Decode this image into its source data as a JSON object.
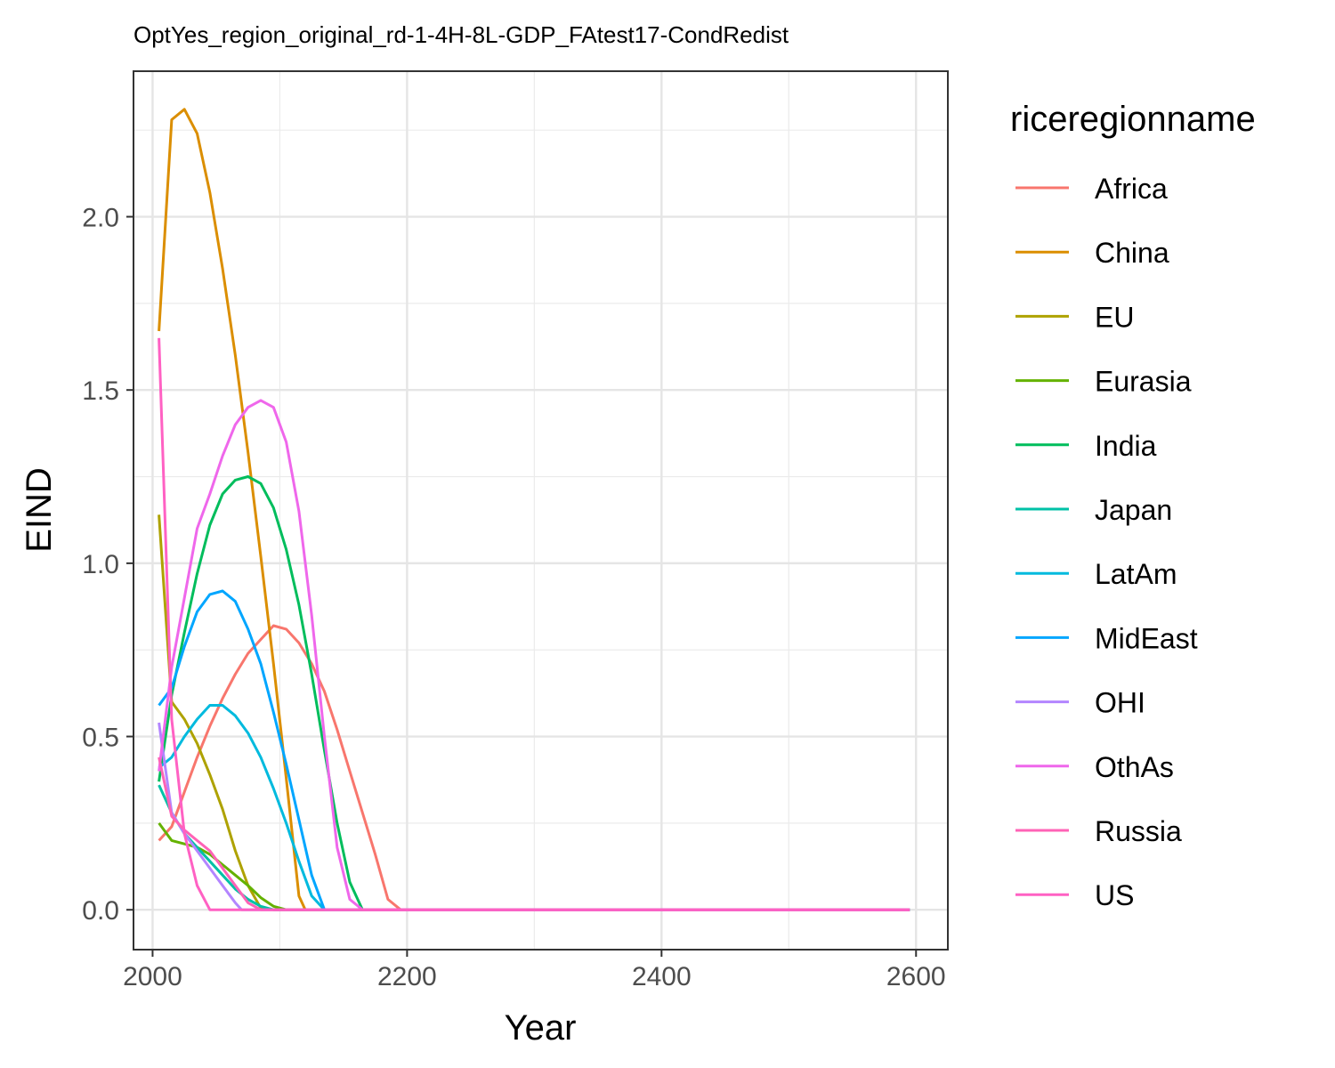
{
  "chart_data": {
    "type": "line",
    "title": "OptYes_region_original_rd-1-4H-8L-GDP_FAtest17-CondRedist",
    "xlabel": "Year",
    "ylabel": "EIND",
    "xlim": [
      1985,
      2625
    ],
    "ylim": [
      -0.115,
      2.42
    ],
    "x_ticks": [
      2000,
      2200,
      2400,
      2600
    ],
    "x_tick_labels": [
      "2000",
      "2200",
      "2400",
      "2600"
    ],
    "y_ticks": [
      0,
      0.5,
      1.0,
      1.5,
      2.0
    ],
    "y_tick_labels": [
      "0.0",
      "0.5",
      "1.0",
      "1.5",
      "2.0"
    ],
    "grid": true,
    "legend_title": "riceregionname",
    "legend_position": "right",
    "series": [
      {
        "name": "Africa",
        "color": "#F8766D",
        "points": [
          [
            2005,
            0.2
          ],
          [
            2015,
            0.24
          ],
          [
            2025,
            0.34
          ],
          [
            2035,
            0.44
          ],
          [
            2045,
            0.53
          ],
          [
            2055,
            0.61
          ],
          [
            2065,
            0.68
          ],
          [
            2075,
            0.74
          ],
          [
            2085,
            0.78
          ],
          [
            2095,
            0.82
          ],
          [
            2105,
            0.81
          ],
          [
            2115,
            0.77
          ],
          [
            2125,
            0.71
          ],
          [
            2135,
            0.63
          ],
          [
            2145,
            0.52
          ],
          [
            2155,
            0.4
          ],
          [
            2165,
            0.28
          ],
          [
            2175,
            0.16
          ],
          [
            2185,
            0.03
          ],
          [
            2195,
            0.0
          ],
          [
            2595,
            0.0
          ]
        ]
      },
      {
        "name": "China",
        "color": "#DB8E00",
        "points": [
          [
            2005,
            1.67
          ],
          [
            2015,
            2.28
          ],
          [
            2025,
            2.31
          ],
          [
            2035,
            2.24
          ],
          [
            2045,
            2.07
          ],
          [
            2055,
            1.85
          ],
          [
            2065,
            1.6
          ],
          [
            2075,
            1.32
          ],
          [
            2085,
            1.02
          ],
          [
            2095,
            0.71
          ],
          [
            2105,
            0.38
          ],
          [
            2115,
            0.04
          ],
          [
            2120,
            0.0
          ],
          [
            2595,
            0.0
          ]
        ]
      },
      {
        "name": "EU",
        "color": "#AEA200",
        "points": [
          [
            2005,
            1.14
          ],
          [
            2015,
            0.6
          ],
          [
            2025,
            0.55
          ],
          [
            2035,
            0.48
          ],
          [
            2045,
            0.39
          ],
          [
            2055,
            0.29
          ],
          [
            2065,
            0.17
          ],
          [
            2075,
            0.07
          ],
          [
            2085,
            0.005
          ],
          [
            2095,
            0.0
          ],
          [
            2595,
            0.0
          ]
        ]
      },
      {
        "name": "Eurasia",
        "color": "#64B200",
        "points": [
          [
            2005,
            0.25
          ],
          [
            2015,
            0.2
          ],
          [
            2025,
            0.19
          ],
          [
            2035,
            0.18
          ],
          [
            2045,
            0.16
          ],
          [
            2055,
            0.13
          ],
          [
            2065,
            0.1
          ],
          [
            2075,
            0.07
          ],
          [
            2085,
            0.035
          ],
          [
            2095,
            0.01
          ],
          [
            2105,
            0.0
          ],
          [
            2595,
            0.0
          ]
        ]
      },
      {
        "name": "India",
        "color": "#00BD5C",
        "points": [
          [
            2005,
            0.37
          ],
          [
            2015,
            0.62
          ],
          [
            2025,
            0.8
          ],
          [
            2035,
            0.97
          ],
          [
            2045,
            1.11
          ],
          [
            2055,
            1.2
          ],
          [
            2065,
            1.24
          ],
          [
            2075,
            1.25
          ],
          [
            2085,
            1.23
          ],
          [
            2095,
            1.16
          ],
          [
            2105,
            1.04
          ],
          [
            2115,
            0.88
          ],
          [
            2125,
            0.68
          ],
          [
            2135,
            0.46
          ],
          [
            2145,
            0.25
          ],
          [
            2155,
            0.08
          ],
          [
            2165,
            0.0
          ],
          [
            2595,
            0.0
          ]
        ]
      },
      {
        "name": "Japan",
        "color": "#00C1A7",
        "points": [
          [
            2005,
            0.36
          ],
          [
            2015,
            0.28
          ],
          [
            2025,
            0.22
          ],
          [
            2035,
            0.18
          ],
          [
            2045,
            0.14
          ],
          [
            2055,
            0.1
          ],
          [
            2065,
            0.06
          ],
          [
            2075,
            0.03
          ],
          [
            2085,
            0.01
          ],
          [
            2095,
            0.0
          ],
          [
            2595,
            0.0
          ]
        ]
      },
      {
        "name": "LatAm",
        "color": "#00BADE",
        "points": [
          [
            2005,
            0.41
          ],
          [
            2015,
            0.44
          ],
          [
            2025,
            0.5
          ],
          [
            2035,
            0.55
          ],
          [
            2045,
            0.59
          ],
          [
            2055,
            0.59
          ],
          [
            2065,
            0.56
          ],
          [
            2075,
            0.51
          ],
          [
            2085,
            0.44
          ],
          [
            2095,
            0.35
          ],
          [
            2105,
            0.25
          ],
          [
            2115,
            0.14
          ],
          [
            2125,
            0.04
          ],
          [
            2135,
            0.0
          ],
          [
            2595,
            0.0
          ]
        ]
      },
      {
        "name": "MidEast",
        "color": "#00A6FF",
        "points": [
          [
            2005,
            0.59
          ],
          [
            2015,
            0.64
          ],
          [
            2025,
            0.76
          ],
          [
            2035,
            0.86
          ],
          [
            2045,
            0.91
          ],
          [
            2055,
            0.92
          ],
          [
            2065,
            0.89
          ],
          [
            2075,
            0.81
          ],
          [
            2085,
            0.71
          ],
          [
            2095,
            0.57
          ],
          [
            2105,
            0.42
          ],
          [
            2115,
            0.26
          ],
          [
            2125,
            0.1
          ],
          [
            2135,
            0.0
          ],
          [
            2595,
            0.0
          ]
        ]
      },
      {
        "name": "OHI",
        "color": "#B385FF",
        "points": [
          [
            2005,
            0.54
          ],
          [
            2015,
            0.28
          ],
          [
            2025,
            0.22
          ],
          [
            2035,
            0.17
          ],
          [
            2045,
            0.12
          ],
          [
            2055,
            0.07
          ],
          [
            2065,
            0.02
          ],
          [
            2070,
            0.0
          ],
          [
            2595,
            0.0
          ]
        ]
      },
      {
        "name": "OthAs",
        "color": "#EF67EB",
        "points": [
          [
            2005,
            0.4
          ],
          [
            2015,
            0.7
          ],
          [
            2025,
            0.9
          ],
          [
            2035,
            1.1
          ],
          [
            2045,
            1.2
          ],
          [
            2055,
            1.31
          ],
          [
            2065,
            1.4
          ],
          [
            2075,
            1.45
          ],
          [
            2085,
            1.47
          ],
          [
            2095,
            1.45
          ],
          [
            2105,
            1.35
          ],
          [
            2115,
            1.15
          ],
          [
            2125,
            0.85
          ],
          [
            2135,
            0.5
          ],
          [
            2145,
            0.18
          ],
          [
            2155,
            0.03
          ],
          [
            2165,
            0.0
          ],
          [
            2595,
            0.0
          ]
        ]
      },
      {
        "name": "Russia",
        "color": "#FF63B6",
        "points": [
          [
            2005,
            0.44
          ],
          [
            2015,
            0.27
          ],
          [
            2025,
            0.23
          ],
          [
            2035,
            0.2
          ],
          [
            2045,
            0.17
          ],
          [
            2055,
            0.12
          ],
          [
            2065,
            0.07
          ],
          [
            2075,
            0.02
          ],
          [
            2085,
            0.0
          ],
          [
            2595,
            0.0
          ]
        ]
      },
      {
        "name": "US",
        "color": "#FF61C3",
        "points": [
          [
            2005,
            1.65
          ],
          [
            2015,
            0.55
          ],
          [
            2025,
            0.22
          ],
          [
            2035,
            0.07
          ],
          [
            2045,
            0.0
          ],
          [
            2595,
            0.0
          ]
        ]
      }
    ]
  }
}
